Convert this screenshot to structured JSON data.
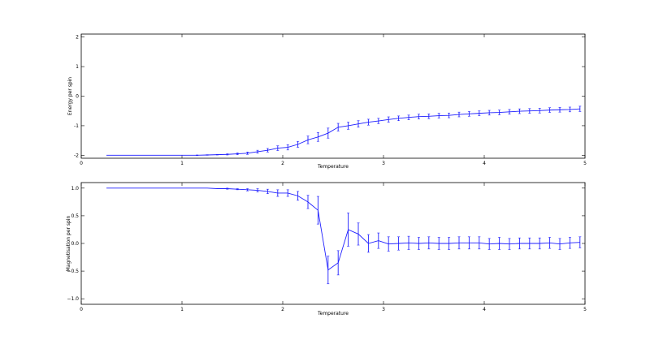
{
  "chart_data": [
    {
      "type": "line",
      "title": "",
      "xlabel": "Temperature",
      "ylabel": "Energy per spin",
      "xlim": [
        0,
        5
      ],
      "ylim": [
        -2.1,
        2.1
      ],
      "xticks": [
        "0",
        "1",
        "2",
        "3",
        "4",
        "5"
      ],
      "yticks": [
        "-2",
        "-1",
        "0",
        "1",
        "2"
      ],
      "xtick_values": [
        0,
        1,
        2,
        3,
        4,
        5
      ],
      "ytick_values": [
        -2,
        -1,
        0,
        1,
        2
      ],
      "grid": false,
      "color": "#1f1fff",
      "series": [
        {
          "x": [
            0.25,
            0.35,
            0.45,
            0.55,
            0.65,
            0.75,
            0.85,
            0.95,
            1.05,
            1.15,
            1.25,
            1.35,
            1.45,
            1.55,
            1.65,
            1.75,
            1.85,
            1.95,
            2.05,
            2.15,
            2.25,
            2.35,
            2.45,
            2.55,
            2.65,
            2.75,
            2.85,
            2.95,
            3.05,
            3.15,
            3.25,
            3.35,
            3.45,
            3.55,
            3.65,
            3.75,
            3.85,
            3.95,
            4.05,
            4.15,
            4.25,
            4.35,
            4.45,
            4.55,
            4.65,
            4.75,
            4.85,
            4.95
          ],
          "y": [
            -2.0,
            -2.0,
            -2.0,
            -2.0,
            -2.0,
            -2.0,
            -2.0,
            -2.0,
            -2.0,
            -2.0,
            -1.99,
            -1.98,
            -1.97,
            -1.95,
            -1.93,
            -1.88,
            -1.83,
            -1.76,
            -1.73,
            -1.63,
            -1.48,
            -1.38,
            -1.25,
            -1.05,
            -1.0,
            -0.94,
            -0.88,
            -0.84,
            -0.79,
            -0.75,
            -0.72,
            -0.69,
            -0.68,
            -0.66,
            -0.65,
            -0.62,
            -0.6,
            -0.58,
            -0.56,
            -0.55,
            -0.53,
            -0.51,
            -0.5,
            -0.49,
            -0.47,
            -0.46,
            -0.45,
            -0.43
          ],
          "err": [
            0,
            0,
            0,
            0,
            0,
            0,
            0,
            0,
            0,
            0.01,
            0.01,
            0.01,
            0.02,
            0.03,
            0.04,
            0.05,
            0.06,
            0.08,
            0.09,
            0.1,
            0.13,
            0.15,
            0.17,
            0.13,
            0.12,
            0.11,
            0.1,
            0.09,
            0.09,
            0.08,
            0.08,
            0.08,
            0.08,
            0.08,
            0.08,
            0.08,
            0.08,
            0.08,
            0.08,
            0.08,
            0.08,
            0.08,
            0.08,
            0.08,
            0.08,
            0.08,
            0.08,
            0.09
          ]
        }
      ]
    },
    {
      "type": "line",
      "title": "",
      "xlabel": "Temperature",
      "ylabel": "Magnetisation per spin",
      "xlim": [
        0,
        5
      ],
      "ylim": [
        -1.1,
        1.1
      ],
      "xticks": [
        "0",
        "1",
        "2",
        "3",
        "4",
        "5"
      ],
      "yticks": [
        "−1.0",
        "−0.5",
        "0.0",
        "0.5",
        "1.0"
      ],
      "xtick_values": [
        0,
        1,
        2,
        3,
        4,
        5
      ],
      "ytick_values": [
        -1.0,
        -0.5,
        0.0,
        0.5,
        1.0
      ],
      "grid": false,
      "color": "#1f1fff",
      "series": [
        {
          "x": [
            0.25,
            0.35,
            0.45,
            0.55,
            0.65,
            0.75,
            0.85,
            0.95,
            1.05,
            1.15,
            1.25,
            1.35,
            1.45,
            1.55,
            1.65,
            1.75,
            1.85,
            1.95,
            2.05,
            2.15,
            2.25,
            2.35,
            2.45,
            2.55,
            2.65,
            2.75,
            2.85,
            2.95,
            3.05,
            3.15,
            3.25,
            3.35,
            3.45,
            3.55,
            3.65,
            3.75,
            3.85,
            3.95,
            4.05,
            4.15,
            4.25,
            4.35,
            4.45,
            4.55,
            4.65,
            4.75,
            4.85,
            4.95
          ],
          "y": [
            1.0,
            1.0,
            1.0,
            1.0,
            1.0,
            1.0,
            1.0,
            1.0,
            1.0,
            1.0,
            1.0,
            0.99,
            0.99,
            0.98,
            0.97,
            0.96,
            0.94,
            0.91,
            0.91,
            0.86,
            0.75,
            0.6,
            -0.48,
            -0.35,
            0.25,
            0.17,
            0.0,
            0.05,
            -0.01,
            0.0,
            0.01,
            0.0,
            0.01,
            0.0,
            0.0,
            0.01,
            0.01,
            0.01,
            -0.01,
            0.0,
            -0.01,
            0.0,
            0.0,
            0.0,
            0.01,
            -0.01,
            0.01,
            0.02
          ],
          "err": [
            0,
            0,
            0,
            0,
            0,
            0,
            0,
            0,
            0,
            0,
            0,
            0,
            0.01,
            0.01,
            0.02,
            0.03,
            0.04,
            0.06,
            0.06,
            0.08,
            0.12,
            0.25,
            0.25,
            0.22,
            0.3,
            0.2,
            0.16,
            0.14,
            0.13,
            0.12,
            0.12,
            0.11,
            0.11,
            0.11,
            0.11,
            0.11,
            0.11,
            0.11,
            0.1,
            0.11,
            0.1,
            0.1,
            0.1,
            0.1,
            0.1,
            0.1,
            0.1,
            0.1
          ]
        }
      ]
    }
  ]
}
